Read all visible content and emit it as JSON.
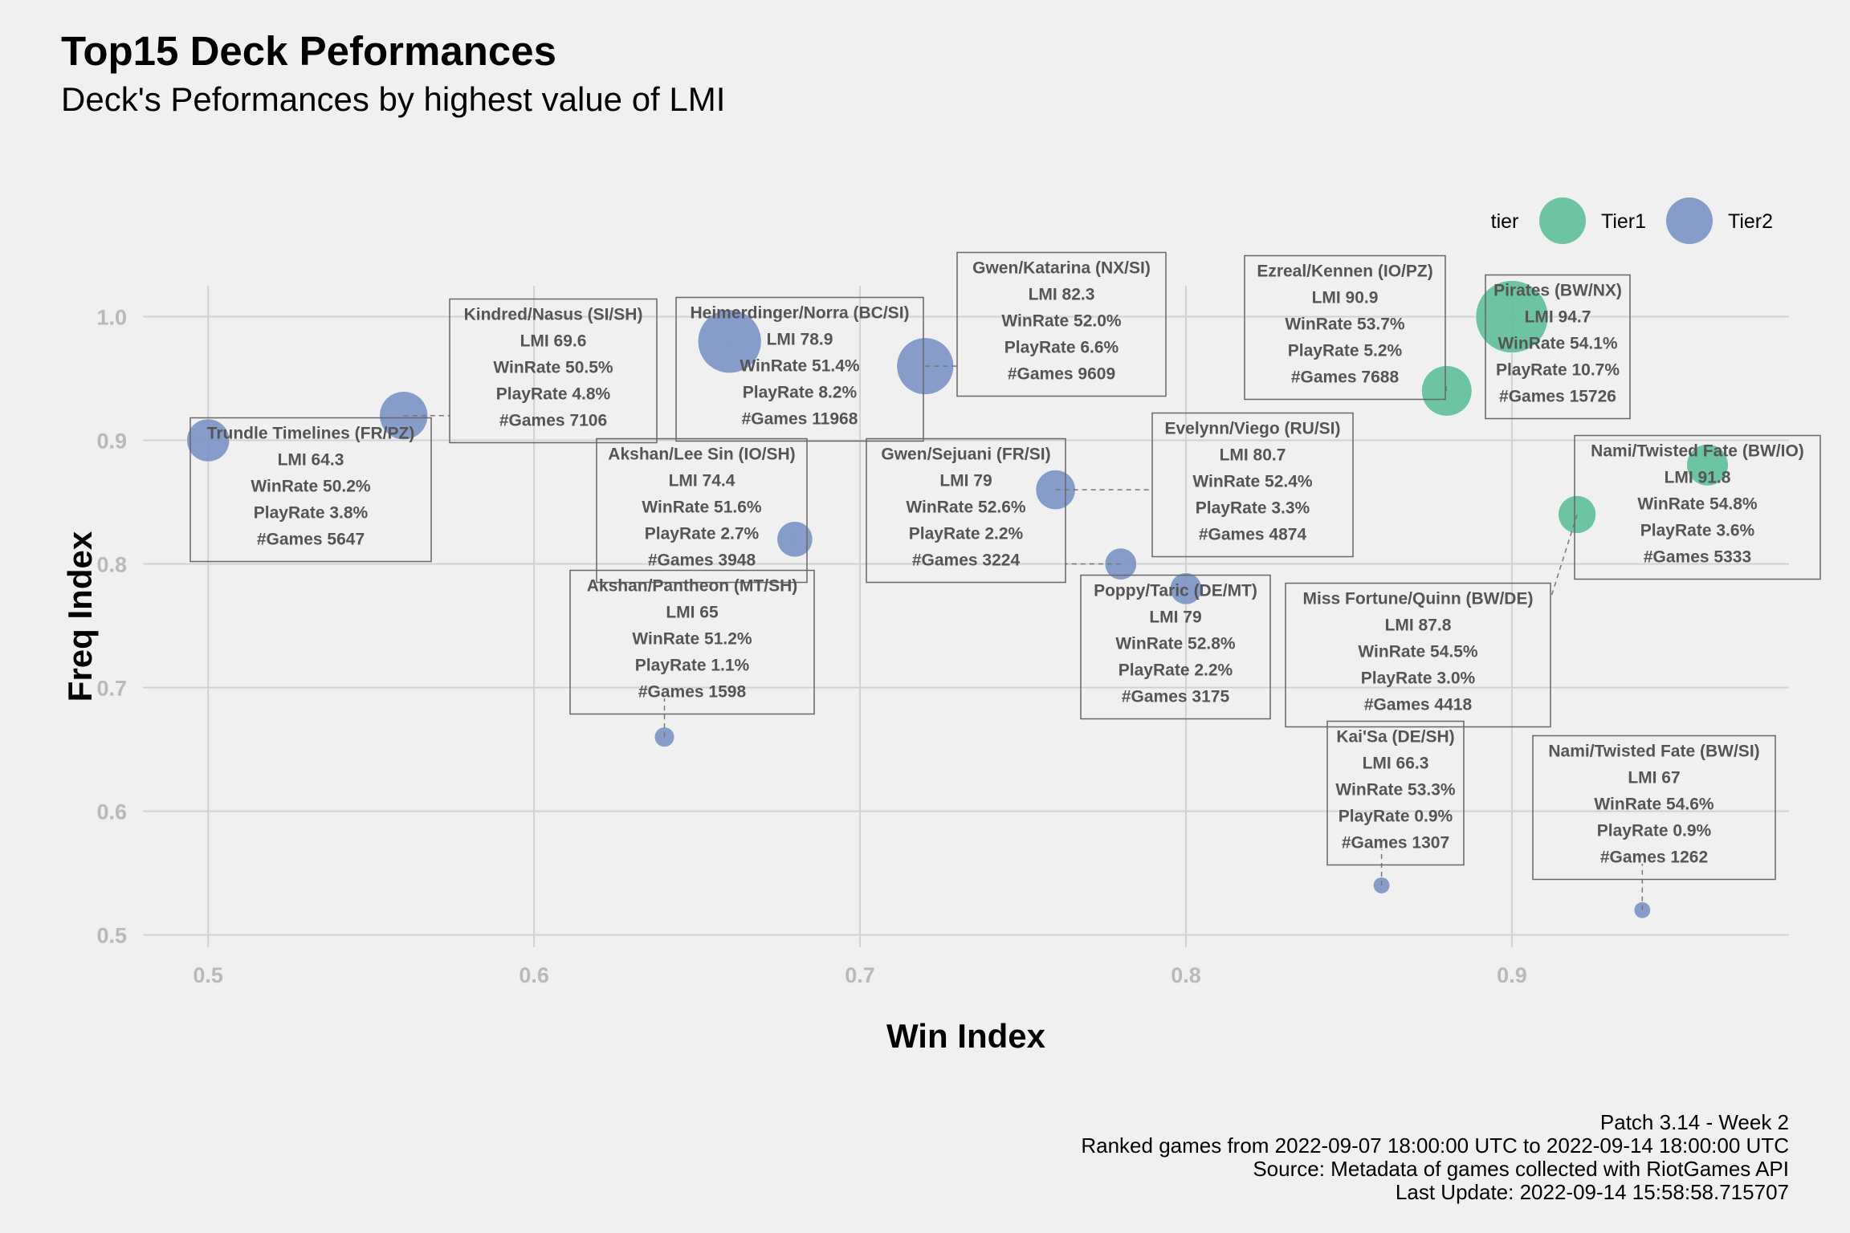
{
  "title": "Top15 Deck Peformances",
  "subtitle": "Deck's Peformances by highest value of LMI",
  "caption": [
    "Patch 3.14 - Week 2",
    "Ranked games from 2022-09-07 18:00:00 UTC to 2022-09-14 18:00:00 UTC",
    "Source: Metadata of games collected with RiotGames API",
    "Last Update: 2022-09-14 15:58:58.715707"
  ],
  "chart_data": {
    "type": "scatter",
    "xlabel": "Win Index",
    "ylabel": "Freq Index",
    "xlim": [
      0.48,
      0.985
    ],
    "ylim": [
      0.49,
      1.025
    ],
    "xticks": [
      0.5,
      0.6,
      0.7,
      0.8,
      0.9
    ],
    "xtick_labels": [
      "0.5",
      "0.6",
      "0.7",
      "0.8",
      "0.9"
    ],
    "yticks": [
      0.5,
      0.6,
      0.7,
      0.8,
      0.9,
      1.0
    ],
    "ytick_labels": [
      "0.5",
      "0.6",
      "0.7",
      "0.8",
      "0.9",
      "1.0"
    ],
    "grid": true,
    "legend": {
      "title": "tier",
      "placement": "top-right",
      "entries": [
        {
          "name": "Tier1",
          "color": "#5dbf99"
        },
        {
          "name": "Tier2",
          "color": "#7b93c4"
        }
      ]
    },
    "points": [
      {
        "name": "Pirates (BW/NX)",
        "x": 0.9,
        "y": 1.0,
        "tier": "Tier1",
        "playrate": 10.7,
        "lines": [
          "Pirates (BW/NX)",
          "LMI 94.7",
          "WinRate 54.1%",
          "PlayRate 10.7%",
          "#Games 15726"
        ]
      },
      {
        "name": "Ezreal/Kennen (IO/PZ)",
        "x": 0.88,
        "y": 0.94,
        "tier": "Tier1",
        "playrate": 5.2,
        "lines": [
          "Ezreal/Kennen (IO/PZ)",
          "LMI 90.9",
          "WinRate 53.7%",
          "PlayRate 5.2%",
          "#Games 7688"
        ]
      },
      {
        "name": "Nami/Twisted Fate (BW/IO)",
        "x": 0.96,
        "y": 0.88,
        "tier": "Tier1",
        "playrate": 3.6,
        "lines": [
          "Nami/Twisted Fate (BW/IO)",
          "LMI 91.8",
          "WinRate 54.8%",
          "PlayRate 3.6%",
          "#Games 5333"
        ]
      },
      {
        "name": "Miss Fortune/Quinn (BW/DE)",
        "x": 0.92,
        "y": 0.84,
        "tier": "Tier1",
        "playrate": 3.0,
        "lines": [
          "Miss Fortune/Quinn (BW/DE)",
          "LMI 87.8",
          "WinRate 54.5%",
          "PlayRate 3.0%",
          "#Games 4418"
        ]
      },
      {
        "name": "Heimerdinger/Norra (BC/SI)",
        "x": 0.66,
        "y": 0.98,
        "tier": "Tier2",
        "playrate": 8.2,
        "lines": [
          "Heimerdinger/Norra (BC/SI)",
          "LMI 78.9",
          "WinRate 51.4%",
          "PlayRate 8.2%",
          "#Games 11968"
        ]
      },
      {
        "name": "Gwen/Katarina (NX/SI)",
        "x": 0.72,
        "y": 0.96,
        "tier": "Tier2",
        "playrate": 6.6,
        "lines": [
          "Gwen/Katarina (NX/SI)",
          "LMI 82.3",
          "WinRate 52.0%",
          "PlayRate 6.6%",
          "#Games 9609"
        ]
      },
      {
        "name": "Kindred/Nasus (SI/SH)",
        "x": 0.56,
        "y": 0.92,
        "tier": "Tier2",
        "playrate": 4.8,
        "lines": [
          "Kindred/Nasus (SI/SH)",
          "LMI 69.6",
          "WinRate 50.5%",
          "PlayRate 4.8%",
          "#Games 7106"
        ]
      },
      {
        "name": "Trundle Timelines (FR/PZ)",
        "x": 0.5,
        "y": 0.9,
        "tier": "Tier2",
        "playrate": 3.8,
        "lines": [
          "Trundle Timelines (FR/PZ)",
          "LMI 64.3",
          "WinRate 50.2%",
          "PlayRate 3.8%",
          "#Games 5647"
        ]
      },
      {
        "name": "Evelynn/Viego (RU/SI)",
        "x": 0.76,
        "y": 0.86,
        "tier": "Tier2",
        "playrate": 3.3,
        "lines": [
          "Evelynn/Viego (RU/SI)",
          "LMI 80.7",
          "WinRate 52.4%",
          "PlayRate 3.3%",
          "#Games 4874"
        ]
      },
      {
        "name": "Akshan/Lee Sin (IO/SH)",
        "x": 0.68,
        "y": 0.82,
        "tier": "Tier2",
        "playrate": 2.7,
        "lines": [
          "Akshan/Lee Sin (IO/SH)",
          "LMI 74.4",
          "WinRate 51.6%",
          "PlayRate 2.7%",
          "#Games 3948"
        ]
      },
      {
        "name": "Gwen/Sejuani (FR/SI)",
        "x": 0.78,
        "y": 0.8,
        "tier": "Tier2",
        "playrate": 2.2,
        "lines": [
          "Gwen/Sejuani (FR/SI)",
          "LMI 79",
          "WinRate 52.6%",
          "PlayRate 2.2%",
          "#Games 3224"
        ]
      },
      {
        "name": "Poppy/Taric (DE/MT)",
        "x": 0.8,
        "y": 0.78,
        "tier": "Tier2",
        "playrate": 2.2,
        "lines": [
          "Poppy/Taric (DE/MT)",
          "LMI 79",
          "WinRate 52.8%",
          "PlayRate 2.2%",
          "#Games 3175"
        ]
      },
      {
        "name": "Akshan/Pantheon (MT/SH)",
        "x": 0.64,
        "y": 0.66,
        "tier": "Tier2",
        "playrate": 1.1,
        "lines": [
          "Akshan/Pantheon (MT/SH)",
          "LMI 65",
          "WinRate 51.2%",
          "PlayRate 1.1%",
          "#Games 1598"
        ]
      },
      {
        "name": "Kai'Sa (DE/SH)",
        "x": 0.86,
        "y": 0.54,
        "tier": "Tier2",
        "playrate": 0.9,
        "lines": [
          "Kai'Sa (DE/SH)",
          "LMI 66.3",
          "WinRate 53.3%",
          "PlayRate 0.9%",
          "#Games 1307"
        ]
      },
      {
        "name": "Nami/Twisted Fate (BW/SI)",
        "x": 0.94,
        "y": 0.52,
        "tier": "Tier2",
        "playrate": 0.9,
        "lines": [
          "Nami/Twisted Fate (BW/SI)",
          "LMI 67",
          "WinRate 54.6%",
          "PlayRate 0.9%",
          "#Games 1262"
        ]
      }
    ]
  }
}
